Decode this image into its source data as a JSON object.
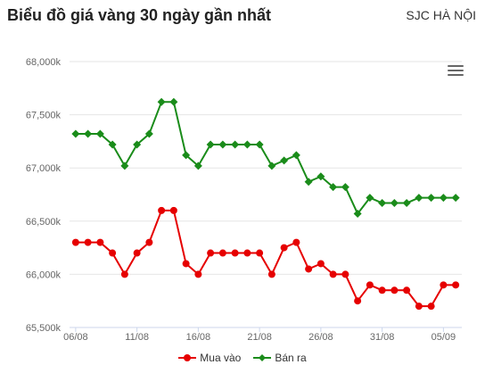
{
  "header": {
    "title": "Biểu đồ giá vàng 30 ngày gần nhất",
    "location": "SJC HÀ NỘI"
  },
  "colors": {
    "buy": "#e60000",
    "sell": "#1a8c1a",
    "grid": "#e6e6e6",
    "axis": "#ccd6eb",
    "tick": "#666666"
  },
  "chart_data": {
    "type": "line",
    "title": "Biểu đồ giá vàng 30 ngày gần nhất",
    "xlabel": "",
    "ylabel": "",
    "ylim": [
      65500,
      68000
    ],
    "yticks": [
      65500,
      66000,
      66500,
      67000,
      67500,
      68000
    ],
    "ytick_labels": [
      "65,500k",
      "66,000k",
      "66,500k",
      "67,000k",
      "67,500k",
      "68,000k"
    ],
    "x": [
      "06/08",
      "07/08",
      "08/08",
      "09/08",
      "10/08",
      "11/08",
      "12/08",
      "13/08",
      "14/08",
      "15/08",
      "16/08",
      "17/08",
      "18/08",
      "19/08",
      "20/08",
      "21/08",
      "22/08",
      "23/08",
      "24/08",
      "25/08",
      "26/08",
      "27/08",
      "28/08",
      "29/08",
      "30/08",
      "31/08",
      "01/09",
      "02/09",
      "03/09",
      "04/09",
      "05/09",
      "06/09"
    ],
    "xtick_labels": [
      {
        "index": 0,
        "label": "06/08"
      },
      {
        "index": 5,
        "label": "11/08"
      },
      {
        "index": 10,
        "label": "16/08"
      },
      {
        "index": 15,
        "label": "21/08"
      },
      {
        "index": 20,
        "label": "26/08"
      },
      {
        "index": 25,
        "label": "31/08"
      },
      {
        "index": 30,
        "label": "05/09"
      }
    ],
    "grid": true,
    "legend_position": "bottom-center",
    "series": [
      {
        "name": "Mua vào",
        "color": "#e60000",
        "marker": "circle",
        "values": [
          66300,
          66300,
          66300,
          66200,
          66000,
          66200,
          66300,
          66600,
          66600,
          66100,
          66000,
          66200,
          66200,
          66200,
          66200,
          66200,
          66000,
          66250,
          66300,
          66050,
          66100,
          66000,
          66000,
          65750,
          65900,
          65850,
          65850,
          65850,
          65700,
          65700,
          65900,
          65900
        ]
      },
      {
        "name": "Bán ra",
        "color": "#1a8c1a",
        "marker": "diamond",
        "values": [
          67320,
          67320,
          67320,
          67220,
          67020,
          67220,
          67320,
          67620,
          67620,
          67120,
          67020,
          67220,
          67220,
          67220,
          67220,
          67220,
          67020,
          67070,
          67120,
          66870,
          66920,
          66820,
          66820,
          66570,
          66720,
          66670,
          66670,
          66670,
          66720,
          66720,
          66720,
          66720
        ]
      }
    ]
  }
}
